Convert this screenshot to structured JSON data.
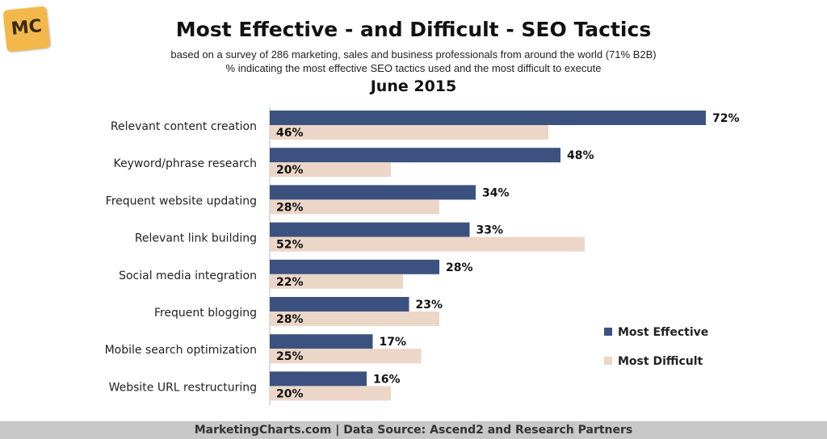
{
  "logo": {
    "text": "MC"
  },
  "header": {
    "title": "Most Effective - and Difficult - SEO Tactics",
    "subtitle_1": "based on a survey of 286 marketing, sales and business professionals from around the world (71% B2B)",
    "subtitle_2": "% indicating the most effective SEO tactics used and the most difficult to execute",
    "date": "June 2015"
  },
  "footer": {
    "text": "MarketingCharts.com | Data Source: Ascend2 and Research Partners"
  },
  "chart_data": {
    "type": "bar",
    "orientation": "horizontal",
    "categories": [
      "Relevant content creation",
      "Keyword/phrase research",
      "Frequent website updating",
      "Relevant link building",
      "Social media integration",
      "Frequent blogging",
      "Mobile search optimization",
      "Website URL restructuring"
    ],
    "series": [
      {
        "name": "Most Effective",
        "color": "#3b5280",
        "values": [
          72,
          48,
          34,
          33,
          28,
          23,
          17,
          16
        ]
      },
      {
        "name": "Most Difficult",
        "color": "#ecd6c8",
        "values": [
          46,
          20,
          28,
          52,
          22,
          28,
          25,
          20
        ]
      }
    ],
    "value_suffix": "%",
    "legend_position": "right",
    "grid": false
  }
}
